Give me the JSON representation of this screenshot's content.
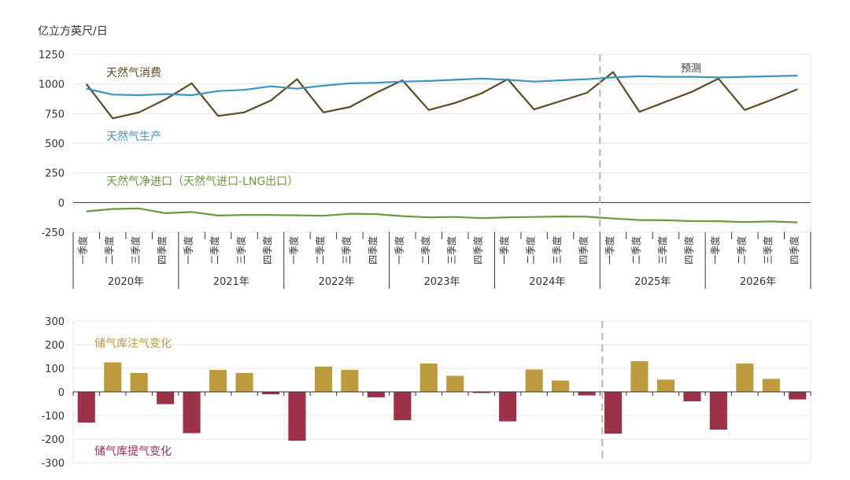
{
  "colors": {
    "consumption": "#5c4a22",
    "production": "#3a95c1",
    "net_imports": "#6a9a3a",
    "injection": "#bf9a3c",
    "withdrawal": "#9c3148",
    "grid": "#e3e3e3",
    "axis": "#333333",
    "divider": "#b5b5b5"
  },
  "chart_data": [
    {
      "type": "line",
      "ylabel": "亿立方英尺/日",
      "ylim": [
        -250,
        1250
      ],
      "yticks": [
        -250,
        0,
        250,
        500,
        750,
        1000,
        1250
      ],
      "quarter_labels": [
        "一季度",
        "二季度",
        "三季度",
        "四季度"
      ],
      "years": [
        "2020年",
        "2021年",
        "2022年",
        "2023年",
        "2024年",
        "2025年",
        "2026年"
      ],
      "forecast_label": "预测",
      "forecast_start_index": 20,
      "series": [
        {
          "name": "天然气消费",
          "values": [
            1000,
            710,
            760,
            870,
            1005,
            730,
            760,
            860,
            1040,
            760,
            805,
            925,
            1030,
            780,
            840,
            920,
            1040,
            785,
            855,
            925,
            1100,
            765,
            850,
            935,
            1045,
            780,
            865,
            955
          ]
        },
        {
          "name": "天然气生产",
          "values": [
            960,
            910,
            905,
            915,
            905,
            940,
            950,
            980,
            960,
            985,
            1005,
            1010,
            1020,
            1025,
            1035,
            1045,
            1035,
            1020,
            1030,
            1040,
            1055,
            1065,
            1060,
            1060,
            1055,
            1060,
            1065,
            1070
          ]
        },
        {
          "name": "天然气净进口（天然气进口-LNG出口）",
          "values": [
            -75,
            -55,
            -50,
            -90,
            -80,
            -110,
            -105,
            -105,
            -108,
            -112,
            -95,
            -98,
            -115,
            -125,
            -122,
            -132,
            -125,
            -122,
            -118,
            -120,
            -135,
            -148,
            -150,
            -157,
            -158,
            -165,
            -160,
            -168
          ]
        }
      ]
    },
    {
      "type": "bar",
      "ylim": [
        -300,
        300
      ],
      "yticks": [
        -300,
        -200,
        -100,
        0,
        100,
        200,
        300
      ],
      "series": [
        {
          "name": "储气库注气变化",
          "values": [
            0,
            125,
            80,
            0,
            0,
            93,
            80,
            0,
            0,
            107,
            93,
            0,
            0,
            120,
            68,
            0,
            0,
            95,
            48,
            0,
            0,
            130,
            52,
            0,
            0,
            120,
            55,
            0
          ]
        },
        {
          "name": "储气库提气变化",
          "values": [
            -130,
            0,
            0,
            -52,
            -175,
            0,
            0,
            -10,
            -207,
            0,
            0,
            -23,
            -120,
            0,
            0,
            -5,
            -125,
            0,
            0,
            -15,
            -177,
            0,
            0,
            -40,
            -160,
            0,
            0,
            -32
          ]
        }
      ]
    }
  ]
}
